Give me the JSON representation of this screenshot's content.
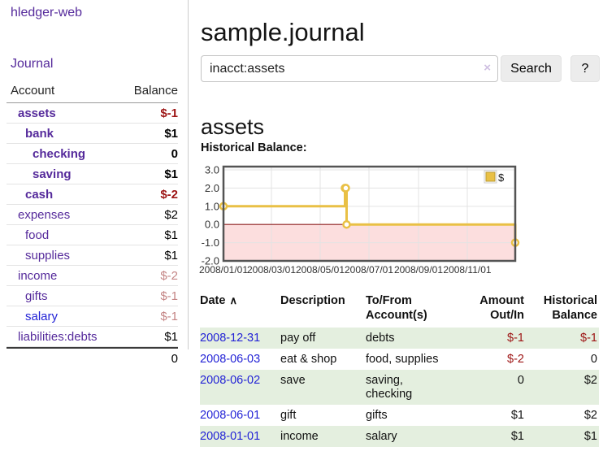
{
  "app": {
    "brand": "hledger-web"
  },
  "nav": {
    "journal": "Journal"
  },
  "sidebar": {
    "accounts_table": {
      "col_account": "Account",
      "col_balance": "Balance",
      "rows": [
        {
          "account": "assets",
          "balance": "$-1",
          "indent": 1,
          "bold": true,
          "balance_style": "neg-strong",
          "link_style": "purple"
        },
        {
          "account": "bank",
          "balance": "$1",
          "indent": 2,
          "bold": true,
          "balance_style": "plain",
          "link_style": "purple"
        },
        {
          "account": "checking",
          "balance": "0",
          "indent": 3,
          "bold": true,
          "balance_style": "plain",
          "link_style": "purple"
        },
        {
          "account": "saving",
          "balance": "$1",
          "indent": 3,
          "bold": true,
          "balance_style": "plain",
          "link_style": "purple"
        },
        {
          "account": "cash",
          "balance": "$-2",
          "indent": 2,
          "bold": true,
          "balance_style": "neg-strong",
          "link_style": "purple"
        },
        {
          "account": "expenses",
          "balance": "$2",
          "indent": 1,
          "bold": false,
          "balance_style": "plain",
          "link_style": "purple"
        },
        {
          "account": "food",
          "balance": "$1",
          "indent": 2,
          "bold": false,
          "balance_style": "plain",
          "link_style": "purple"
        },
        {
          "account": "supplies",
          "balance": "$1",
          "indent": 2,
          "bold": false,
          "balance_style": "plain",
          "link_style": "purple"
        },
        {
          "account": "income",
          "balance": "$-2",
          "indent": 1,
          "bold": false,
          "balance_style": "neg-soft",
          "link_style": "purple"
        },
        {
          "account": "gifts",
          "balance": "$-1",
          "indent": 2,
          "bold": false,
          "balance_style": "neg-soft",
          "link_style": "purple"
        },
        {
          "account": "salary",
          "balance": "$-1",
          "indent": 2,
          "bold": false,
          "balance_style": "neg-soft",
          "link_style": "blue"
        },
        {
          "account": "liabilities:debts",
          "balance": "$1",
          "indent": 1,
          "bold": false,
          "balance_style": "plain",
          "link_style": "purple"
        }
      ],
      "total": "0"
    }
  },
  "main": {
    "title": "sample.journal",
    "search": {
      "value": "inacct:assets",
      "clear_icon": "×",
      "search_button": "Search",
      "help_button": "?"
    },
    "account_heading": "assets",
    "chart_title": "Historical Balance:",
    "register": {
      "headers": {
        "date": "Date",
        "date_sort_icon": "∧",
        "description": "Description",
        "accounts_line1": "To/From",
        "accounts_line2": "Account(s)",
        "amount_line1": "Amount",
        "amount_line2": "Out/In",
        "balance_line1": "Historical",
        "balance_line2": "Balance"
      },
      "rows": [
        {
          "date": "2008-12-31",
          "description": "pay off",
          "accounts": "debts",
          "amount": "$-1",
          "balance": "$-1"
        },
        {
          "date": "2008-06-03",
          "description": "eat & shop",
          "accounts": "food, supplies",
          "amount": "$-2",
          "balance": "0"
        },
        {
          "date": "2008-06-02",
          "description": "save",
          "accounts": "saving, checking",
          "amount": "0",
          "balance": "$2"
        },
        {
          "date": "2008-06-01",
          "description": "gift",
          "accounts": "gifts",
          "amount": "$1",
          "balance": "$2"
        },
        {
          "date": "2008-01-01",
          "description": "income",
          "accounts": "salary",
          "amount": "$1",
          "balance": "$1"
        }
      ]
    }
  },
  "chart_data": {
    "type": "line",
    "step": true,
    "title": "Historical Balance",
    "series": [
      {
        "name": "$",
        "color": "#e9c045",
        "points": [
          [
            "2008-01-01",
            1
          ],
          [
            "2008-06-01",
            2
          ],
          [
            "2008-06-02",
            2
          ],
          [
            "2008-06-03",
            0
          ],
          [
            "2008-12-31",
            -1
          ]
        ]
      }
    ],
    "x_range": [
      "2008-01-01",
      "2008-12-31"
    ],
    "ylim": [
      -2,
      3
    ],
    "yticks": [
      3,
      2,
      1,
      0,
      -1,
      -2
    ],
    "ytick_labels": [
      "3.0",
      "2.0",
      "1.0",
      "0.0",
      "-1.0",
      "-2.0"
    ],
    "xticks": [
      "2008-01-01",
      "2008-03-01",
      "2008-05-01",
      "2008-07-01",
      "2008-09-01",
      "2008-11-01"
    ],
    "xtick_labels": [
      "2008/01/01",
      "2008/03/01",
      "2008/05/01",
      "2008/07/01",
      "2008/09/01",
      "2008/11/01"
    ],
    "legend": {
      "label": "$",
      "position": "top-right"
    },
    "grid": true,
    "negative_region_fill": "#fcdede",
    "zero_line_color": "#8f1d1d",
    "border_color": "#545454"
  },
  "colors": {
    "purple_link": "#552a9b",
    "blue_link": "#2323d6",
    "negative_strong": "#9d1414",
    "negative_soft": "#c48585",
    "stripe_green": "#e4efdf",
    "chart_line": "#e9c045"
  }
}
